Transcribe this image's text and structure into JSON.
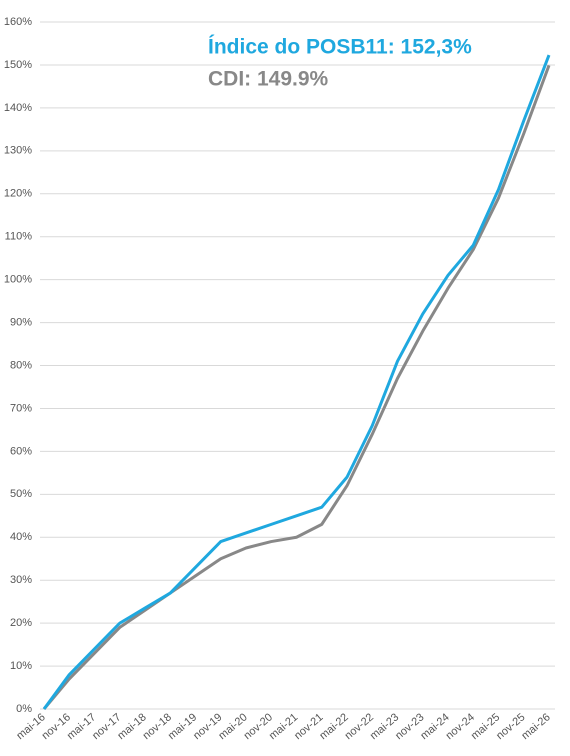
{
  "chart_data": {
    "type": "line",
    "categories": [
      "mai-16",
      "nov-16",
      "mai-17",
      "nov-17",
      "mai-18",
      "nov-18",
      "mai-19",
      "nov-19",
      "mai-20",
      "nov-20",
      "mai-21",
      "nov-21",
      "mai-22",
      "nov-22",
      "mai-23",
      "nov-23",
      "mai-24",
      "nov-24",
      "mai-25",
      "nov-25",
      "mai-26"
    ],
    "series": [
      {
        "name": "Índice do POSB11: 152,3%",
        "color": "#1fa8df",
        "values": [
          0,
          8,
          14,
          20,
          23.5,
          27,
          33,
          39,
          41,
          43,
          45,
          47,
          54,
          66,
          81,
          92,
          101,
          108,
          121,
          137,
          152.3
        ]
      },
      {
        "name": "CDI: 149.9%",
        "color": "#888888",
        "values": [
          0,
          7,
          13,
          19,
          23,
          27,
          31,
          35,
          37.5,
          39,
          40,
          43,
          52,
          64,
          77,
          88,
          98,
          107,
          119,
          134,
          149.9
        ]
      }
    ],
    "ylim": [
      0,
      160
    ],
    "yticks": [
      {
        "value": 0,
        "label": "0%"
      },
      {
        "value": 10,
        "label": "10%"
      },
      {
        "value": 20,
        "label": "20%"
      },
      {
        "value": 30,
        "label": "30%"
      },
      {
        "value": 40,
        "label": "40%"
      },
      {
        "value": 50,
        "label": "50%"
      },
      {
        "value": 60,
        "label": "60%"
      },
      {
        "value": 70,
        "label": "70%"
      },
      {
        "value": 80,
        "label": "80%"
      },
      {
        "value": 90,
        "label": "90%"
      },
      {
        "value": 100,
        "label": "100%"
      },
      {
        "value": 110,
        "label": "110%"
      },
      {
        "value": 120,
        "label": "120%"
      },
      {
        "value": 130,
        "label": "130%"
      },
      {
        "value": 140,
        "label": "140%"
      },
      {
        "value": 150,
        "label": "150%"
      },
      {
        "value": 160,
        "label": "160%"
      }
    ],
    "grid": true
  }
}
